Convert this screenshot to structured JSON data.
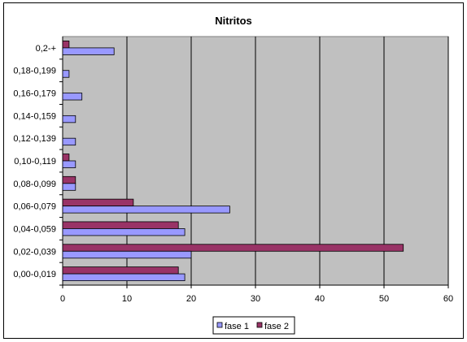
{
  "chart_data": {
    "type": "bar",
    "orientation": "horizontal",
    "title": "Nitritos",
    "xlabel": "",
    "ylabel": "",
    "categories": [
      "0,00-0,019",
      "0,02-0,039",
      "0,04-0,059",
      "0,06-0,079",
      "0,08-0,099",
      "0,10-0,119",
      "0,12-0,139",
      "0,14-0,159",
      "0,16-0,179",
      "0,18-0,199",
      "0,2-+"
    ],
    "series": [
      {
        "name": "fase 1",
        "color": "#9999ff",
        "values": [
          19,
          20,
          19,
          26,
          2,
          2,
          2,
          2,
          3,
          1,
          8
        ]
      },
      {
        "name": "fase 2",
        "color": "#993366",
        "values": [
          18,
          53,
          18,
          11,
          2,
          1,
          0,
          0,
          0,
          0,
          1
        ]
      }
    ],
    "xlim": [
      0,
      60
    ],
    "x_ticks": [
      "0",
      "10",
      "20",
      "30",
      "40",
      "50",
      "60"
    ],
    "grid": true,
    "plot_background": "#c0c0c0",
    "legend_position": "bottom"
  }
}
